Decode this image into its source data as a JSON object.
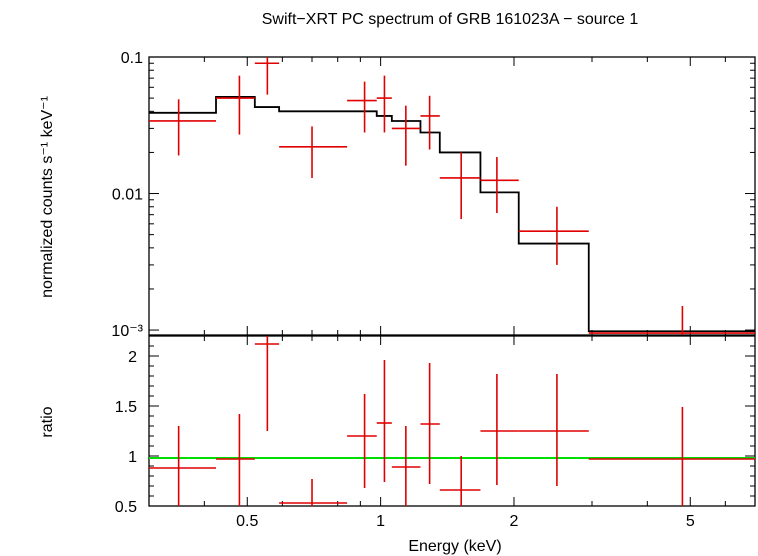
{
  "chart_data": [
    {
      "panel": "spectrum",
      "type": "scatter",
      "title": "Swift−XRT PC spectrum of GRB 161023A − source 1",
      "xlabel": "Energy (keV)",
      "ylabel": "normalized counts s⁻¹ keV⁻¹",
      "xscale": "log",
      "yscale": "log",
      "xlim": [
        0.3,
        7.0
      ],
      "ylim": [
        0.00092,
        0.1
      ],
      "yticks": [
        {
          "value": 0.1,
          "label": "0.1"
        },
        {
          "value": 0.01,
          "label": "0.01"
        },
        {
          "value": 0.001,
          "label": "10⁻³"
        }
      ],
      "data_color": "#e00000",
      "model_color": "#000000",
      "series": [
        {
          "name": "data",
          "points": [
            {
              "x": 0.35,
              "xlo": 0.3,
              "xhi": 0.425,
              "y": 0.034,
              "ylo": 0.019,
              "yhi": 0.049
            },
            {
              "x": 0.48,
              "xlo": 0.425,
              "xhi": 0.52,
              "y": 0.05,
              "ylo": 0.027,
              "yhi": 0.073
            },
            {
              "x": 0.555,
              "xlo": 0.52,
              "xhi": 0.59,
              "y": 0.09,
              "ylo": 0.053,
              "yhi": 0.105
            },
            {
              "x": 0.7,
              "xlo": 0.59,
              "xhi": 0.84,
              "y": 0.022,
              "ylo": 0.013,
              "yhi": 0.031
            },
            {
              "x": 0.92,
              "xlo": 0.84,
              "xhi": 0.98,
              "y": 0.048,
              "ylo": 0.028,
              "yhi": 0.066
            },
            {
              "x": 1.02,
              "xlo": 0.98,
              "xhi": 1.06,
              "y": 0.05,
              "ylo": 0.028,
              "yhi": 0.073
            },
            {
              "x": 1.14,
              "xlo": 1.06,
              "xhi": 1.23,
              "y": 0.03,
              "ylo": 0.016,
              "yhi": 0.044
            },
            {
              "x": 1.29,
              "xlo": 1.23,
              "xhi": 1.36,
              "y": 0.037,
              "ylo": 0.021,
              "yhi": 0.052
            },
            {
              "x": 1.52,
              "xlo": 1.36,
              "xhi": 1.68,
              "y": 0.013,
              "ylo": 0.0065,
              "yhi": 0.02
            },
            {
              "x": 1.83,
              "xlo": 1.68,
              "xhi": 2.05,
              "y": 0.0125,
              "ylo": 0.0072,
              "yhi": 0.0185
            },
            {
              "x": 2.5,
              "xlo": 2.05,
              "xhi": 2.95,
              "y": 0.0053,
              "ylo": 0.003,
              "yhi": 0.008
            },
            {
              "x": 4.8,
              "xlo": 2.95,
              "xhi": 7.0,
              "y": 0.00095,
              "ylo": 0.00092,
              "yhi": 0.0015
            }
          ]
        },
        {
          "name": "model",
          "steps": [
            {
              "x0": 0.3,
              "x1": 0.425,
              "y": 0.039
            },
            {
              "x0": 0.425,
              "x1": 0.52,
              "y": 0.051
            },
            {
              "x0": 0.52,
              "x1": 0.59,
              "y": 0.043
            },
            {
              "x0": 0.59,
              "x1": 0.84,
              "y": 0.04
            },
            {
              "x0": 0.84,
              "x1": 0.98,
              "y": 0.04
            },
            {
              "x0": 0.98,
              "x1": 1.06,
              "y": 0.037
            },
            {
              "x0": 1.06,
              "x1": 1.23,
              "y": 0.034
            },
            {
              "x0": 1.23,
              "x1": 1.36,
              "y": 0.028
            },
            {
              "x0": 1.36,
              "x1": 1.68,
              "y": 0.02
            },
            {
              "x0": 1.68,
              "x1": 2.05,
              "y": 0.0102
            },
            {
              "x0": 2.05,
              "x1": 2.95,
              "y": 0.0043
            },
            {
              "x0": 2.95,
              "x1": 7.0,
              "y": 0.00098
            }
          ]
        }
      ]
    },
    {
      "panel": "ratio",
      "type": "scatter",
      "xlabel": "Energy (keV)",
      "ylabel": "ratio",
      "xscale": "log",
      "yscale": "linear",
      "xlim": [
        0.3,
        7.0
      ],
      "ylim": [
        0.5,
        2.2
      ],
      "xticks": [
        {
          "value": 0.5,
          "label": "0.5"
        },
        {
          "value": 1,
          "label": "1"
        },
        {
          "value": 2,
          "label": "2"
        },
        {
          "value": 5,
          "label": "5"
        }
      ],
      "yticks": [
        {
          "value": 0.5,
          "label": "0.5"
        },
        {
          "value": 1,
          "label": "1"
        },
        {
          "value": 1.5,
          "label": "1.5"
        },
        {
          "value": 2,
          "label": "2"
        }
      ],
      "reference_line": {
        "y": 0.98,
        "color": "#00dd00"
      },
      "series": [
        {
          "name": "ratio",
          "points": [
            {
              "x": 0.35,
              "xlo": 0.3,
              "xhi": 0.425,
              "y": 0.88,
              "ylo": 0.5,
              "yhi": 1.3
            },
            {
              "x": 0.48,
              "xlo": 0.425,
              "xhi": 0.52,
              "y": 0.97,
              "ylo": 0.5,
              "yhi": 1.42
            },
            {
              "x": 0.555,
              "xlo": 0.52,
              "xhi": 0.59,
              "y": 2.12,
              "ylo": 1.25,
              "yhi": 2.2
            },
            {
              "x": 0.7,
              "xlo": 0.59,
              "xhi": 0.84,
              "y": 0.53,
              "ylo": 0.5,
              "yhi": 0.77
            },
            {
              "x": 0.92,
              "xlo": 0.84,
              "xhi": 0.98,
              "y": 1.2,
              "ylo": 0.68,
              "yhi": 1.62
            },
            {
              "x": 1.02,
              "xlo": 0.98,
              "xhi": 1.06,
              "y": 1.33,
              "ylo": 0.74,
              "yhi": 1.96
            },
            {
              "x": 1.14,
              "xlo": 1.06,
              "xhi": 1.23,
              "y": 0.89,
              "ylo": 0.5,
              "yhi": 1.3
            },
            {
              "x": 1.29,
              "xlo": 1.23,
              "xhi": 1.36,
              "y": 1.32,
              "ylo": 0.72,
              "yhi": 1.93
            },
            {
              "x": 1.52,
              "xlo": 1.36,
              "xhi": 1.68,
              "y": 0.66,
              "ylo": 0.5,
              "yhi": 1.0
            },
            {
              "x": 1.83,
              "xlo": 1.68,
              "xhi": 2.05,
              "y": 1.25,
              "ylo": 0.71,
              "yhi": 1.82
            },
            {
              "x": 2.5,
              "xlo": 2.05,
              "xhi": 2.95,
              "y": 1.25,
              "ylo": 0.7,
              "yhi": 1.82
            },
            {
              "x": 4.8,
              "xlo": 2.95,
              "xhi": 7.0,
              "y": 0.97,
              "ylo": 0.5,
              "yhi": 1.49
            }
          ]
        }
      ]
    }
  ]
}
